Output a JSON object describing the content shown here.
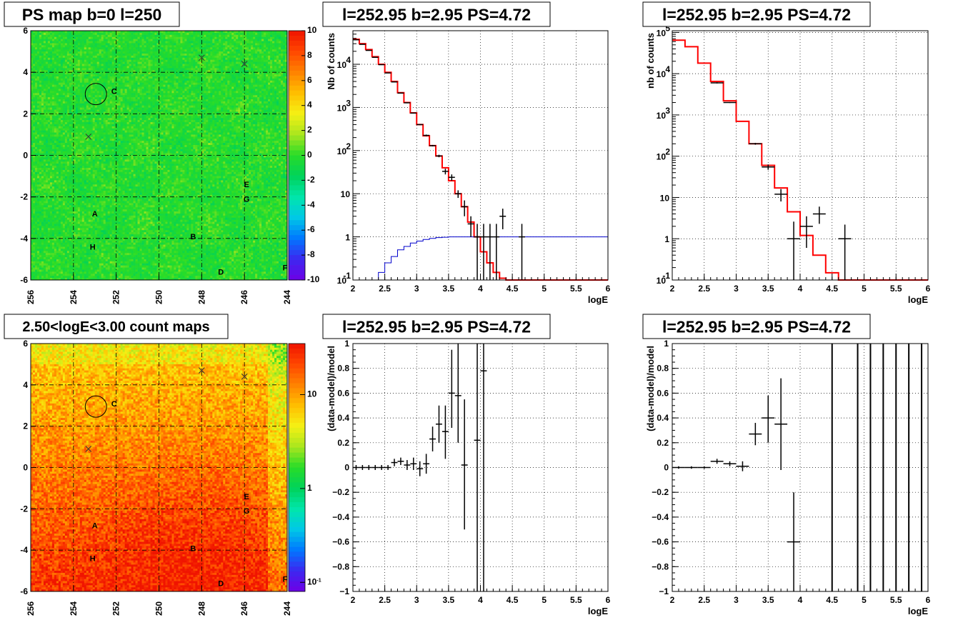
{
  "colors": {
    "model": "#ff0000",
    "efficiency": "#0000cc",
    "data": "#000000"
  },
  "chart_data": [
    {
      "type": "heatmap",
      "title": "PS map b=0 l=250",
      "xlim": [
        256,
        244
      ],
      "ylim": [
        -6,
        6
      ],
      "xticks": [
        "256",
        "254",
        "252",
        "250",
        "248",
        "246",
        "244"
      ],
      "yticks": [
        "-6",
        "-4",
        "-2",
        "0",
        "2",
        "4",
        "6"
      ],
      "colorbar": {
        "scale": "linear",
        "range": [
          -10,
          10
        ],
        "ticks": [
          "10",
          "8",
          "6",
          "4",
          "2",
          "0",
          "-2",
          "-4",
          "-6",
          "-8",
          "-10"
        ]
      },
      "sources": [
        {
          "label": "A",
          "l": 253.0,
          "b": -2.8
        },
        {
          "label": "B",
          "l": 248.4,
          "b": -3.9
        },
        {
          "label": "C",
          "l": 252.1,
          "b": 3.1
        },
        {
          "label": "D",
          "l": 247.1,
          "b": -5.6
        },
        {
          "label": "E",
          "l": 245.9,
          "b": -1.4
        },
        {
          "label": "F",
          "l": 244.1,
          "b": -5.4
        },
        {
          "label": "G",
          "l": 245.9,
          "b": -2.1
        },
        {
          "label": "H",
          "l": 253.1,
          "b": -4.4
        }
      ],
      "crosses": [
        {
          "l": 248.0,
          "b": 4.7
        },
        {
          "l": 246.0,
          "b": 4.4
        },
        {
          "l": 253.3,
          "b": 0.9
        }
      ],
      "circle": {
        "l": 252.95,
        "b": 2.95,
        "r": 0.5
      }
    },
    {
      "type": "line",
      "title": "l=252.95 b=2.95 PS=4.72",
      "xlabel": "logE",
      "ylabel": "Nb of counts",
      "xlim": [
        2,
        6
      ],
      "ylim": [
        0.1,
        60000
      ],
      "yscale": "log",
      "xticks": [
        "2",
        "2.5",
        "3",
        "3.5",
        "4",
        "4.5",
        "5",
        "5.5",
        "6"
      ],
      "yticks": [
        {
          "v": 0.1,
          "t": "10"
        },
        {
          "v": 1,
          "t": "1"
        },
        {
          "v": 10,
          "t": "10"
        },
        {
          "v": 100,
          "t": "10"
        },
        {
          "v": 1000,
          "t": "10"
        },
        {
          "v": 10000,
          "t": "10"
        }
      ],
      "grid": true,
      "series": [
        {
          "kind": "step",
          "bin_width": 0.1,
          "x": [
            2.0,
            2.1,
            2.2,
            2.3,
            2.4,
            2.5,
            2.6,
            2.7,
            2.8,
            2.9,
            3.0,
            3.1,
            3.2,
            3.3,
            3.4,
            3.5,
            3.6,
            3.7,
            3.8,
            3.9,
            4.0,
            4.1,
            4.2,
            4.3,
            4.4,
            4.5,
            4.6,
            4.7,
            4.8,
            4.9,
            5.0,
            5.1,
            5.2,
            5.3,
            5.4,
            5.5,
            5.6,
            5.7,
            5.8,
            5.9
          ],
          "y": [
            38000,
            30000,
            22000,
            15000,
            10000,
            6500,
            4000,
            2200,
            1300,
            750,
            400,
            220,
            130,
            75,
            40,
            20,
            10,
            5,
            2.2,
            1,
            0.45,
            0.25,
            0.15,
            0.11,
            0.1,
            0.1,
            0.1,
            0.1,
            0.1,
            0.1,
            0.1,
            0.1,
            0.1,
            0.1,
            0.1,
            0.1,
            0.1,
            0.1,
            0.1,
            0.1
          ]
        },
        {
          "kind": "step",
          "bin_width": 0.1,
          "x": [
            2.0,
            2.1,
            2.2,
            2.3,
            2.4,
            2.5,
            2.6,
            2.7,
            2.8,
            2.9,
            3.0,
            3.1,
            3.2,
            3.3,
            3.4,
            3.5,
            3.6,
            3.7,
            3.8,
            3.9,
            4.0,
            4.1,
            4.2,
            4.3,
            4.4,
            4.5,
            4.6,
            4.7,
            4.8,
            4.9,
            5.0,
            5.1,
            5.2,
            5.3,
            5.4,
            5.5,
            5.6,
            5.7,
            5.8,
            5.9
          ],
          "y": [
            0.1,
            0.1,
            0.1,
            0.1,
            0.15,
            0.25,
            0.35,
            0.5,
            0.6,
            0.72,
            0.8,
            0.87,
            0.92,
            0.96,
            0.98,
            1,
            1,
            1,
            1,
            1,
            1,
            1,
            1,
            1,
            1,
            1,
            1,
            1,
            1,
            1,
            1,
            1,
            1,
            1,
            1,
            1,
            1,
            1,
            1,
            1
          ]
        },
        {
          "kind": "points",
          "x": [
            2.05,
            2.15,
            2.25,
            2.35,
            2.45,
            2.55,
            2.65,
            2.75,
            2.85,
            2.95,
            3.05,
            3.15,
            3.25,
            3.35,
            3.45,
            3.55,
            3.65,
            3.75,
            3.85,
            3.95,
            4.05,
            4.15,
            4.25,
            4.35,
            4.65
          ],
          "y": [
            37000,
            29000,
            21000,
            14500,
            9800,
            6300,
            3900,
            2150,
            1280,
            740,
            400,
            225,
            130,
            75,
            33,
            24,
            10,
            5,
            2,
            1,
            1,
            1,
            1,
            3,
            1
          ],
          "ylo": [
            36500,
            28500,
            20700,
            14300,
            9600,
            6200,
            3850,
            2100,
            1250,
            720,
            390,
            215,
            125,
            70,
            28,
            20,
            8,
            3,
            1,
            0.1,
            0.1,
            0.1,
            0.1,
            1.5,
            0.1
          ],
          "yhi": [
            37500,
            29500,
            21300,
            14700,
            10000,
            6400,
            3950,
            2200,
            1310,
            760,
            410,
            235,
            135,
            80,
            38,
            28,
            12,
            7,
            3,
            2,
            2,
            2,
            2,
            4.5,
            2
          ],
          "xerr": 0.05
        }
      ]
    },
    {
      "type": "line",
      "title": "l=252.95 b=2.95 PS=4.72",
      "xlabel": "logE",
      "ylabel": "nb of counts",
      "xlim": [
        2,
        6
      ],
      "ylim": [
        0.1,
        110000
      ],
      "yscale": "log",
      "xticks": [
        "2",
        "2.5",
        "3",
        "3.5",
        "4",
        "4.5",
        "5",
        "5.5",
        "6"
      ],
      "yticks": [
        {
          "v": 0.1,
          "t": "10"
        },
        {
          "v": 1,
          "t": "1"
        },
        {
          "v": 10,
          "t": "10"
        },
        {
          "v": 100,
          "t": "10"
        },
        {
          "v": 1000,
          "t": "10"
        },
        {
          "v": 10000,
          "t": "10"
        },
        {
          "v": 100000,
          "t": "10"
        }
      ],
      "grid": true,
      "series": [
        {
          "kind": "step",
          "bin_width": 0.2,
          "x": [
            2.0,
            2.2,
            2.4,
            2.6,
            2.8,
            3.0,
            3.2,
            3.4,
            3.6,
            3.8,
            4.0,
            4.2,
            4.4,
            4.6,
            4.8,
            5.0,
            5.2,
            5.4,
            5.6,
            5.8
          ],
          "y": [
            65000,
            45000,
            18000,
            6500,
            2200,
            700,
            200,
            60,
            17,
            4.5,
            1.2,
            0.4,
            0.15,
            0.1,
            0.1,
            0.1,
            0.1,
            0.1,
            0.1,
            0.1
          ]
        },
        {
          "kind": "points",
          "x": [
            2.7,
            2.9,
            3.3,
            3.5,
            3.7,
            3.9,
            4.1,
            4.3,
            4.7
          ],
          "y": [
            6000,
            2000,
            200,
            55,
            12,
            1,
            2,
            4,
            1
          ],
          "ylo": [
            5800,
            1950,
            190,
            47,
            8,
            0.1,
            0.6,
            2.3,
            0.1
          ],
          "yhi": [
            6200,
            2050,
            210,
            63,
            16,
            2.6,
            3.5,
            6,
            2.2
          ],
          "xerr": 0.1
        }
      ]
    },
    {
      "type": "heatmap",
      "title": "2.50<logE<3.00 count maps",
      "xlim": [
        256,
        244
      ],
      "ylim": [
        -6,
        6
      ],
      "xticks": [
        "256",
        "254",
        "252",
        "250",
        "248",
        "246",
        "244"
      ],
      "yticks": [
        "-6",
        "-4",
        "-2",
        "0",
        "2",
        "4",
        "6"
      ],
      "colorbar": {
        "scale": "log",
        "range": [
          0.08,
          35
        ],
        "ticks": [
          {
            "v": 10,
            "t": "10"
          },
          {
            "v": 1,
            "t": "1"
          },
          {
            "v": 0.1,
            "t": "10"
          }
        ]
      },
      "sources": [
        {
          "label": "A",
          "l": 253.0,
          "b": -2.8
        },
        {
          "label": "B",
          "l": 248.4,
          "b": -3.9
        },
        {
          "label": "C",
          "l": 252.1,
          "b": 3.1
        },
        {
          "label": "D",
          "l": 247.1,
          "b": -5.6
        },
        {
          "label": "E",
          "l": 245.9,
          "b": -1.4
        },
        {
          "label": "F",
          "l": 244.1,
          "b": -5.4
        },
        {
          "label": "G",
          "l": 245.9,
          "b": -2.1
        },
        {
          "label": "H",
          "l": 253.1,
          "b": -4.4
        }
      ],
      "crosses": [
        {
          "l": 248.0,
          "b": 4.7
        },
        {
          "l": 246.0,
          "b": 4.4
        },
        {
          "l": 253.3,
          "b": 0.9
        }
      ],
      "circle": {
        "l": 252.95,
        "b": 2.95,
        "r": 0.5
      }
    },
    {
      "type": "scatter",
      "title": "l=252.95 b=2.95 PS=4.72",
      "xlabel": "logE",
      "ylabel": "(data-model)/model",
      "xlim": [
        2,
        6
      ],
      "ylim": [
        -1,
        1
      ],
      "xticks": [
        "2",
        "2.5",
        "3",
        "3.5",
        "4",
        "4.5",
        "5",
        "5.5",
        "6"
      ],
      "yticks": [
        "-1",
        "-0.8",
        "-0.6",
        "-0.4",
        "-0.2",
        "0",
        "0.2",
        "0.4",
        "0.6",
        "0.8",
        "1"
      ],
      "grid": true,
      "series": [
        {
          "kind": "points",
          "x": [
            2.05,
            2.15,
            2.25,
            2.35,
            2.45,
            2.55,
            2.65,
            2.75,
            2.85,
            2.95,
            3.05,
            3.15,
            3.25,
            3.35,
            3.45,
            3.55,
            3.65,
            3.75,
            3.95,
            4.05
          ],
          "y": [
            0,
            0,
            0,
            0,
            0,
            0,
            0.04,
            0.05,
            0.02,
            0.03,
            -0.01,
            0.03,
            0.23,
            0.35,
            0.29,
            0.6,
            0.58,
            0.02,
            0.22,
            0.78
          ],
          "ylo": [
            -0.02,
            -0.02,
            -0.02,
            -0.02,
            -0.02,
            -0.02,
            0.01,
            0.02,
            -0.02,
            -0.02,
            -0.07,
            -0.05,
            0.13,
            0.2,
            0.07,
            0.32,
            0.2,
            -0.5,
            -1,
            -1
          ],
          "yhi": [
            0.02,
            0.02,
            0.02,
            0.02,
            0.02,
            0.02,
            0.07,
            0.08,
            0.06,
            0.08,
            0.05,
            0.11,
            0.33,
            0.5,
            0.5,
            0.95,
            1,
            0.55,
            1,
            1
          ],
          "xerr": 0.05
        }
      ]
    },
    {
      "type": "scatter",
      "title": "l=252.95 b=2.95 PS=4.72",
      "xlabel": "logE",
      "ylabel": "(data-model)/model",
      "xlim": [
        2,
        6
      ],
      "ylim": [
        -1,
        1
      ],
      "xticks": [
        "2",
        "2.5",
        "3",
        "3.5",
        "4",
        "4.5",
        "5",
        "5.5",
        "6"
      ],
      "yticks": [
        "-1",
        "-0.8",
        "-0.6",
        "-0.4",
        "-0.2",
        "0",
        "0.2",
        "0.4",
        "0.6",
        "0.8",
        "1"
      ],
      "grid": true,
      "series": [
        {
          "kind": "points",
          "x": [
            2.1,
            2.3,
            2.5,
            2.7,
            2.9,
            3.1,
            3.3,
            3.5,
            3.7,
            3.9
          ],
          "y": [
            0,
            0,
            0,
            0.05,
            0.03,
            0.01,
            0.27,
            0.4,
            0.35,
            -0.6
          ],
          "ylo": [
            -0.01,
            -0.01,
            -0.01,
            0.03,
            0.01,
            -0.03,
            0.18,
            0.2,
            -0.02,
            -1
          ],
          "yhi": [
            0.01,
            0.01,
            0.01,
            0.07,
            0.05,
            0.05,
            0.36,
            0.58,
            0.72,
            -0.2
          ],
          "xerr": 0.1
        },
        {
          "kind": "vlines",
          "x": [
            4.5,
            4.9,
            5.1,
            5.3,
            5.5,
            5.7,
            5.9
          ],
          "ylo": -1,
          "yhi": 1
        }
      ]
    }
  ]
}
